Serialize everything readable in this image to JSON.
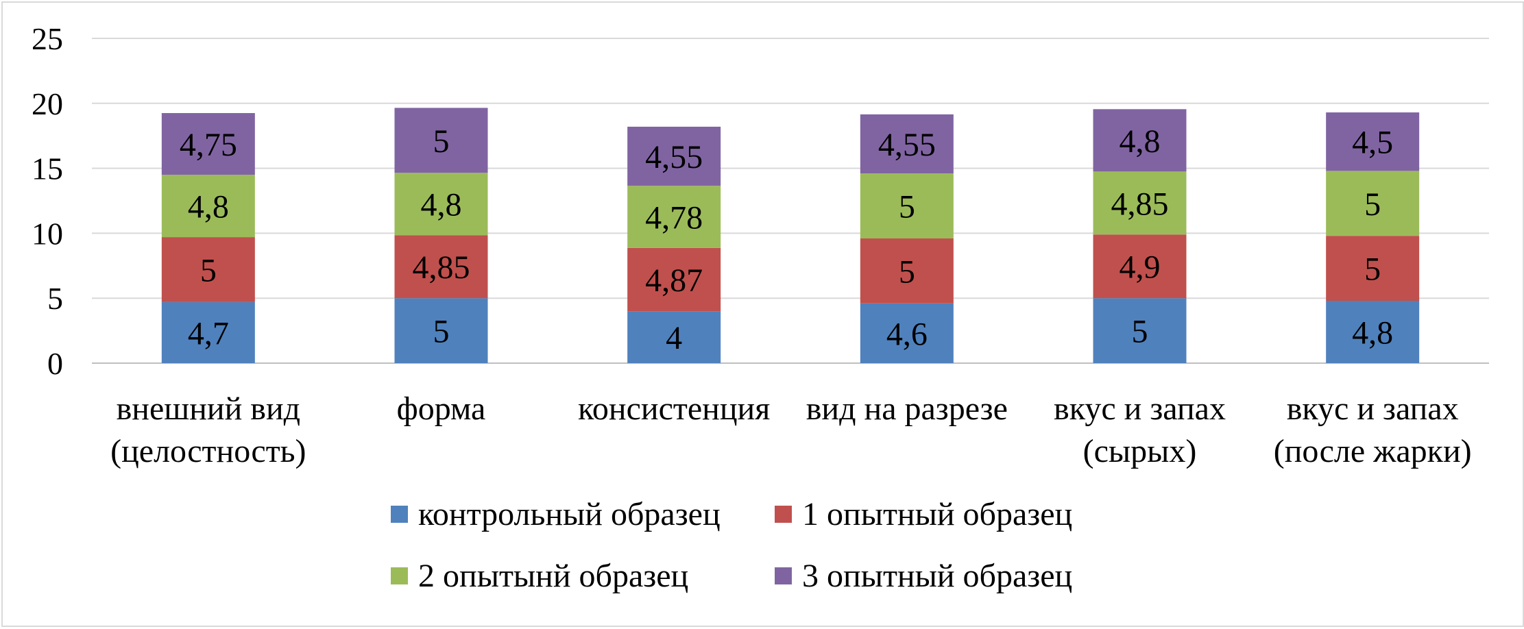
{
  "chart_data": {
    "type": "stacked_bar",
    "categories": [
      [
        "внешний вид",
        "(целостность)"
      ],
      [
        "форма"
      ],
      [
        "консистенция"
      ],
      [
        "вид на разрезе"
      ],
      [
        "вкус и запах",
        "(сырых)"
      ],
      [
        "вкус и запах",
        "(после жарки)"
      ]
    ],
    "series": [
      {
        "name": "контрольный образец",
        "color": "#4f81bd",
        "values": [
          4.7,
          5,
          4,
          4.6,
          5,
          4.8
        ],
        "labels": [
          "4,7",
          "5",
          "4",
          "4,6",
          "5",
          "4,8"
        ]
      },
      {
        "name": "1 опытный образец",
        "color": "#c0504d",
        "values": [
          5,
          4.85,
          4.87,
          5,
          4.9,
          5
        ],
        "labels": [
          "5",
          "4,85",
          "4,87",
          "5",
          "4,9",
          "5"
        ]
      },
      {
        "name": "2 опытынй образец",
        "color": "#9bbb59",
        "values": [
          4.8,
          4.8,
          4.78,
          5,
          4.85,
          5
        ],
        "labels": [
          "4,8",
          "4,8",
          "4,78",
          "5",
          "4,85",
          "5"
        ]
      },
      {
        "name": "3 опытный образец",
        "color": "#8064a2",
        "values": [
          4.75,
          5,
          4.55,
          4.55,
          4.8,
          4.5
        ],
        "labels": [
          "4,75",
          "5",
          "4,55",
          "4,55",
          "4,8",
          "4,5"
        ]
      }
    ],
    "ylim": [
      0,
      25
    ],
    "yticks": [
      "0",
      "5",
      "10",
      "15",
      "20",
      "25"
    ],
    "grid": true,
    "legend_position": "bottom",
    "title": "",
    "xlabel": "",
    "ylabel": ""
  }
}
